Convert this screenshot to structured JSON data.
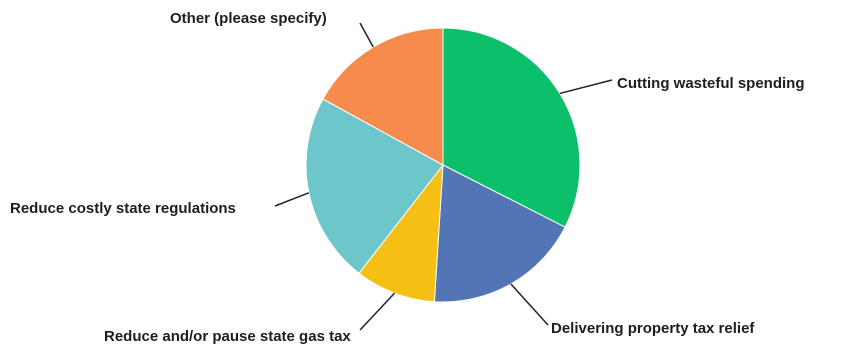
{
  "chart_data": {
    "type": "pie",
    "title": "",
    "slices": [
      {
        "label": "Cutting wasteful spending",
        "value": 32.5,
        "color": "#0cbf6b"
      },
      {
        "label": "Delivering property tax relief",
        "value": 18.5,
        "color": "#5275b5"
      },
      {
        "label": "Reduce and/or pause state gas tax",
        "value": 9.5,
        "color": "#f6bf13"
      },
      {
        "label": "Reduce costly state regulations",
        "value": 22.5,
        "color": "#6cc6ca"
      },
      {
        "label": "Other (please specify)",
        "value": 17.0,
        "color": "#f58c4c"
      }
    ]
  }
}
